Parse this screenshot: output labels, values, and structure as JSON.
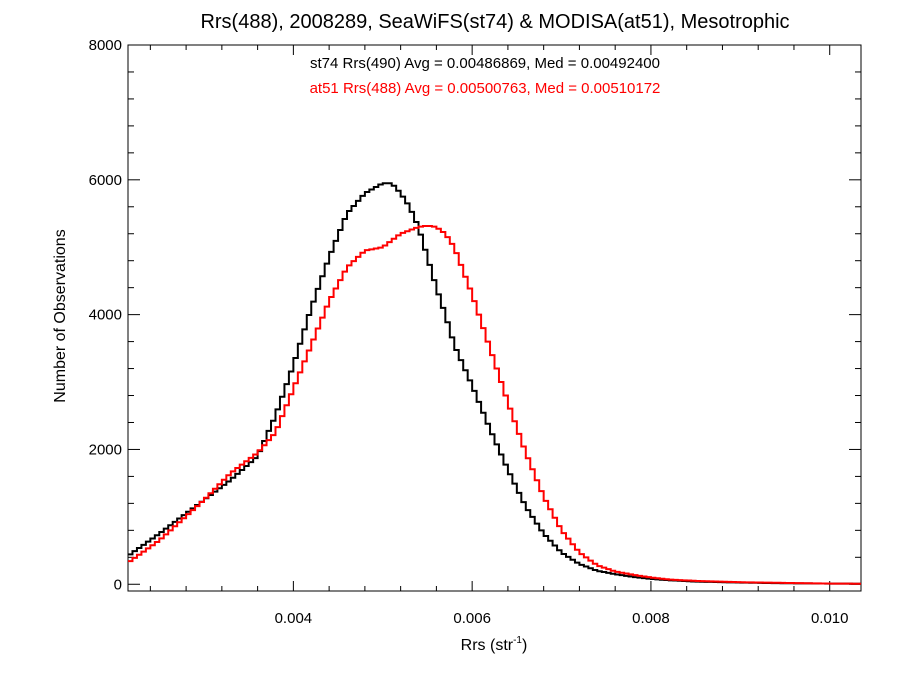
{
  "chart_data": {
    "type": "line",
    "title": "Rrs(488), 2008289, SeaWiFS(st74) & MODISA(at51), Mesotrophic",
    "xlabel": {
      "base": "Rrs (str",
      "sup": "-1",
      "end": ")"
    },
    "ylabel": "Number of Observations",
    "xlim": [
      0.00215,
      0.01035
    ],
    "ylim": [
      -100,
      8000
    ],
    "xticks": [
      {
        "value": 0.004,
        "label": "0.004"
      },
      {
        "value": 0.006,
        "label": "0.006"
      },
      {
        "value": 0.008,
        "label": "0.008"
      },
      {
        "value": 0.01,
        "label": "0.010"
      }
    ],
    "yticks": [
      {
        "value": 0,
        "label": "0"
      },
      {
        "value": 2000,
        "label": "2000"
      },
      {
        "value": 4000,
        "label": "4000"
      },
      {
        "value": 6000,
        "label": "6000"
      },
      {
        "value": 8000,
        "label": "8000"
      }
    ],
    "annotations": [
      {
        "text": "st74 Rrs(490) Avg = 0.00486869, Med = 0.00492400",
        "color": "#000000"
      },
      {
        "text": "at51 Rrs(488) Avg = 0.00500763, Med = 0.00510172",
        "color": "#ff0000"
      }
    ],
    "bin_width": 5e-05,
    "series": [
      {
        "color": "#000000",
        "x": [
          0.00215,
          0.0025,
          0.003,
          0.0033,
          0.0036,
          0.0038,
          0.004,
          0.0042,
          0.0044,
          0.0046,
          0.0048,
          0.005,
          0.0051,
          0.0052,
          0.0053,
          0.0054,
          0.0055,
          0.0056,
          0.0057,
          0.0058,
          0.006,
          0.0062,
          0.0064,
          0.0066,
          0.0068,
          0.007,
          0.0072,
          0.0074,
          0.0076,
          0.0078,
          0.008,
          0.0082,
          0.0085,
          0.009,
          0.0095,
          0.01,
          0.01035
        ],
        "y": [
          420,
          750,
          1250,
          1550,
          1900,
          2500,
          3250,
          4100,
          4850,
          5500,
          5800,
          5950,
          5950,
          5800,
          5600,
          5300,
          4850,
          4400,
          4000,
          3550,
          2950,
          2300,
          1700,
          1150,
          750,
          470,
          300,
          200,
          150,
          110,
          80,
          60,
          40,
          25,
          15,
          10,
          8
        ]
      },
      {
        "color": "#ff0000",
        "x": [
          0.00215,
          0.0025,
          0.003,
          0.0033,
          0.0036,
          0.0038,
          0.004,
          0.0042,
          0.0044,
          0.0046,
          0.0048,
          0.005,
          0.0052,
          0.0054,
          0.0055,
          0.0056,
          0.0057,
          0.0058,
          0.006,
          0.0062,
          0.0064,
          0.0066,
          0.0068,
          0.007,
          0.0072,
          0.0074,
          0.0076,
          0.0078,
          0.008,
          0.0082,
          0.0085,
          0.009,
          0.0095,
          0.01,
          0.01035
        ],
        "y": [
          320,
          650,
          1250,
          1650,
          1950,
          2250,
          2900,
          3550,
          4200,
          4700,
          4950,
          5000,
          5200,
          5300,
          5320,
          5300,
          5200,
          5000,
          4300,
          3500,
          2700,
          1950,
          1300,
          800,
          470,
          280,
          190,
          140,
          100,
          70,
          50,
          30,
          20,
          10,
          8
        ]
      }
    ]
  }
}
